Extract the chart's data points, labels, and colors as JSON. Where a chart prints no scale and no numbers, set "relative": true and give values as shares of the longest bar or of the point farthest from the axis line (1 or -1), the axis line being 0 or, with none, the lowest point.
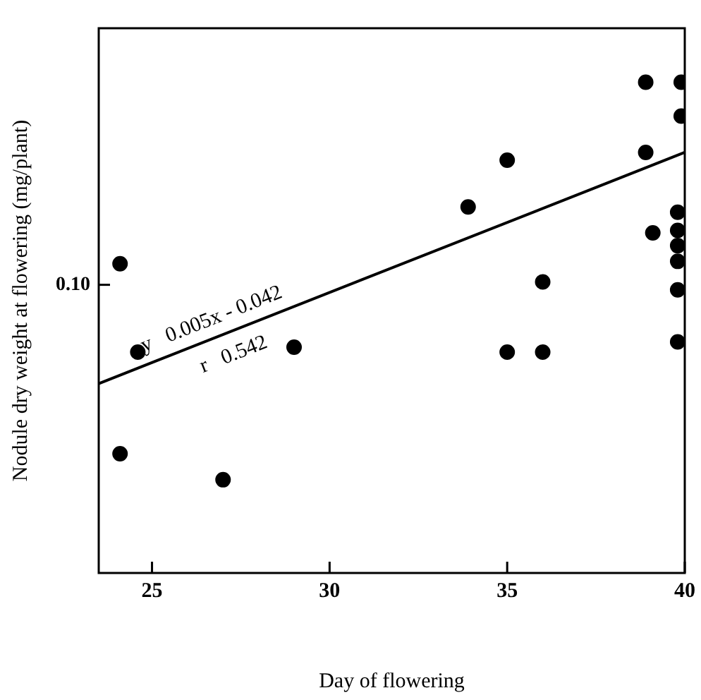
{
  "chart_data": {
    "type": "scatter",
    "relative": true,
    "xlabel": "Day of flowering",
    "ylabel": "Nodule dry weight at flowering (mg/plant)",
    "xlim": [
      23.5,
      40
    ],
    "xticks": [
      25,
      30,
      35,
      40
    ],
    "marker": "circle",
    "grid": false,
    "legend": false,
    "series": [
      {
        "color": "#000000",
        "x": [
          24.1,
          24.6,
          24.1,
          27.0,
          29.0,
          38.9,
          39.9,
          39.9,
          35.0,
          38.9,
          33.9,
          39.1,
          39.8,
          39.8,
          39.8,
          39.8,
          36.0,
          39.8,
          35.0,
          36.0,
          39.8
        ],
        "values": [
          0.63,
          0.45,
          0.243,
          0.19,
          0.46,
          1,
          1,
          0.931,
          0.841,
          0.857,
          0.746,
          0.693,
          0.735,
          0.698,
          0.667,
          0.635,
          0.593,
          0.577,
          0.45,
          0.45,
          0.471
        ]
      },
      {
        "type": "line",
        "color": "#000000",
        "x": [
          23.5,
          40
        ],
        "values": [
          0.386,
          0.857
        ],
        "marker": "none"
      }
    ],
    "annotations": [
      "0.10",
      "y   0.005x - 0.042",
      "r   0.542"
    ]
  }
}
